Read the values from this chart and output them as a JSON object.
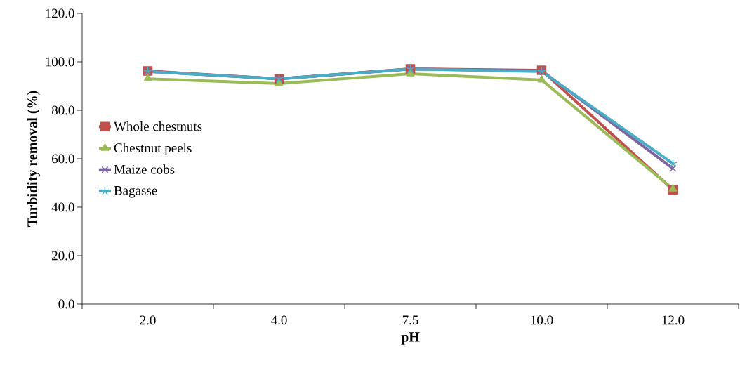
{
  "chart_data": {
    "type": "line",
    "xlabel": "pH",
    "ylabel": "Turbidity removal (%)",
    "categories": [
      "2.0",
      "4.0",
      "7.5",
      "10.0",
      "12.0"
    ],
    "ylim": [
      0,
      120
    ],
    "yticks": [
      {
        "value": 0,
        "label": "0.0"
      },
      {
        "value": 20,
        "label": "20.0"
      },
      {
        "value": 40,
        "label": "40.0"
      },
      {
        "value": 60,
        "label": "60.0"
      },
      {
        "value": 80,
        "label": "80.0"
      },
      {
        "value": 100,
        "label": "100.0"
      },
      {
        "value": 120,
        "label": "120.0"
      }
    ],
    "grid": false,
    "legend": "left",
    "series": [
      {
        "name": "Whole chestnuts",
        "color": "#c0504d",
        "marker": "square",
        "values": [
          96.2,
          93.0,
          97.1,
          96.5,
          47.2
        ]
      },
      {
        "name": "Chestnut peels",
        "color": "#9bbb59",
        "marker": "triangle",
        "values": [
          93.0,
          91.0,
          95.1,
          92.5,
          47.5
        ]
      },
      {
        "name": "Maize cobs",
        "color": "#8064a2",
        "marker": "cross",
        "values": [
          96.0,
          93.0,
          97.0,
          96.3,
          56.0
        ]
      },
      {
        "name": "Bagasse",
        "color": "#4bacc6",
        "marker": "cross",
        "values": [
          96.0,
          93.0,
          97.0,
          96.0,
          58.0
        ]
      }
    ]
  }
}
